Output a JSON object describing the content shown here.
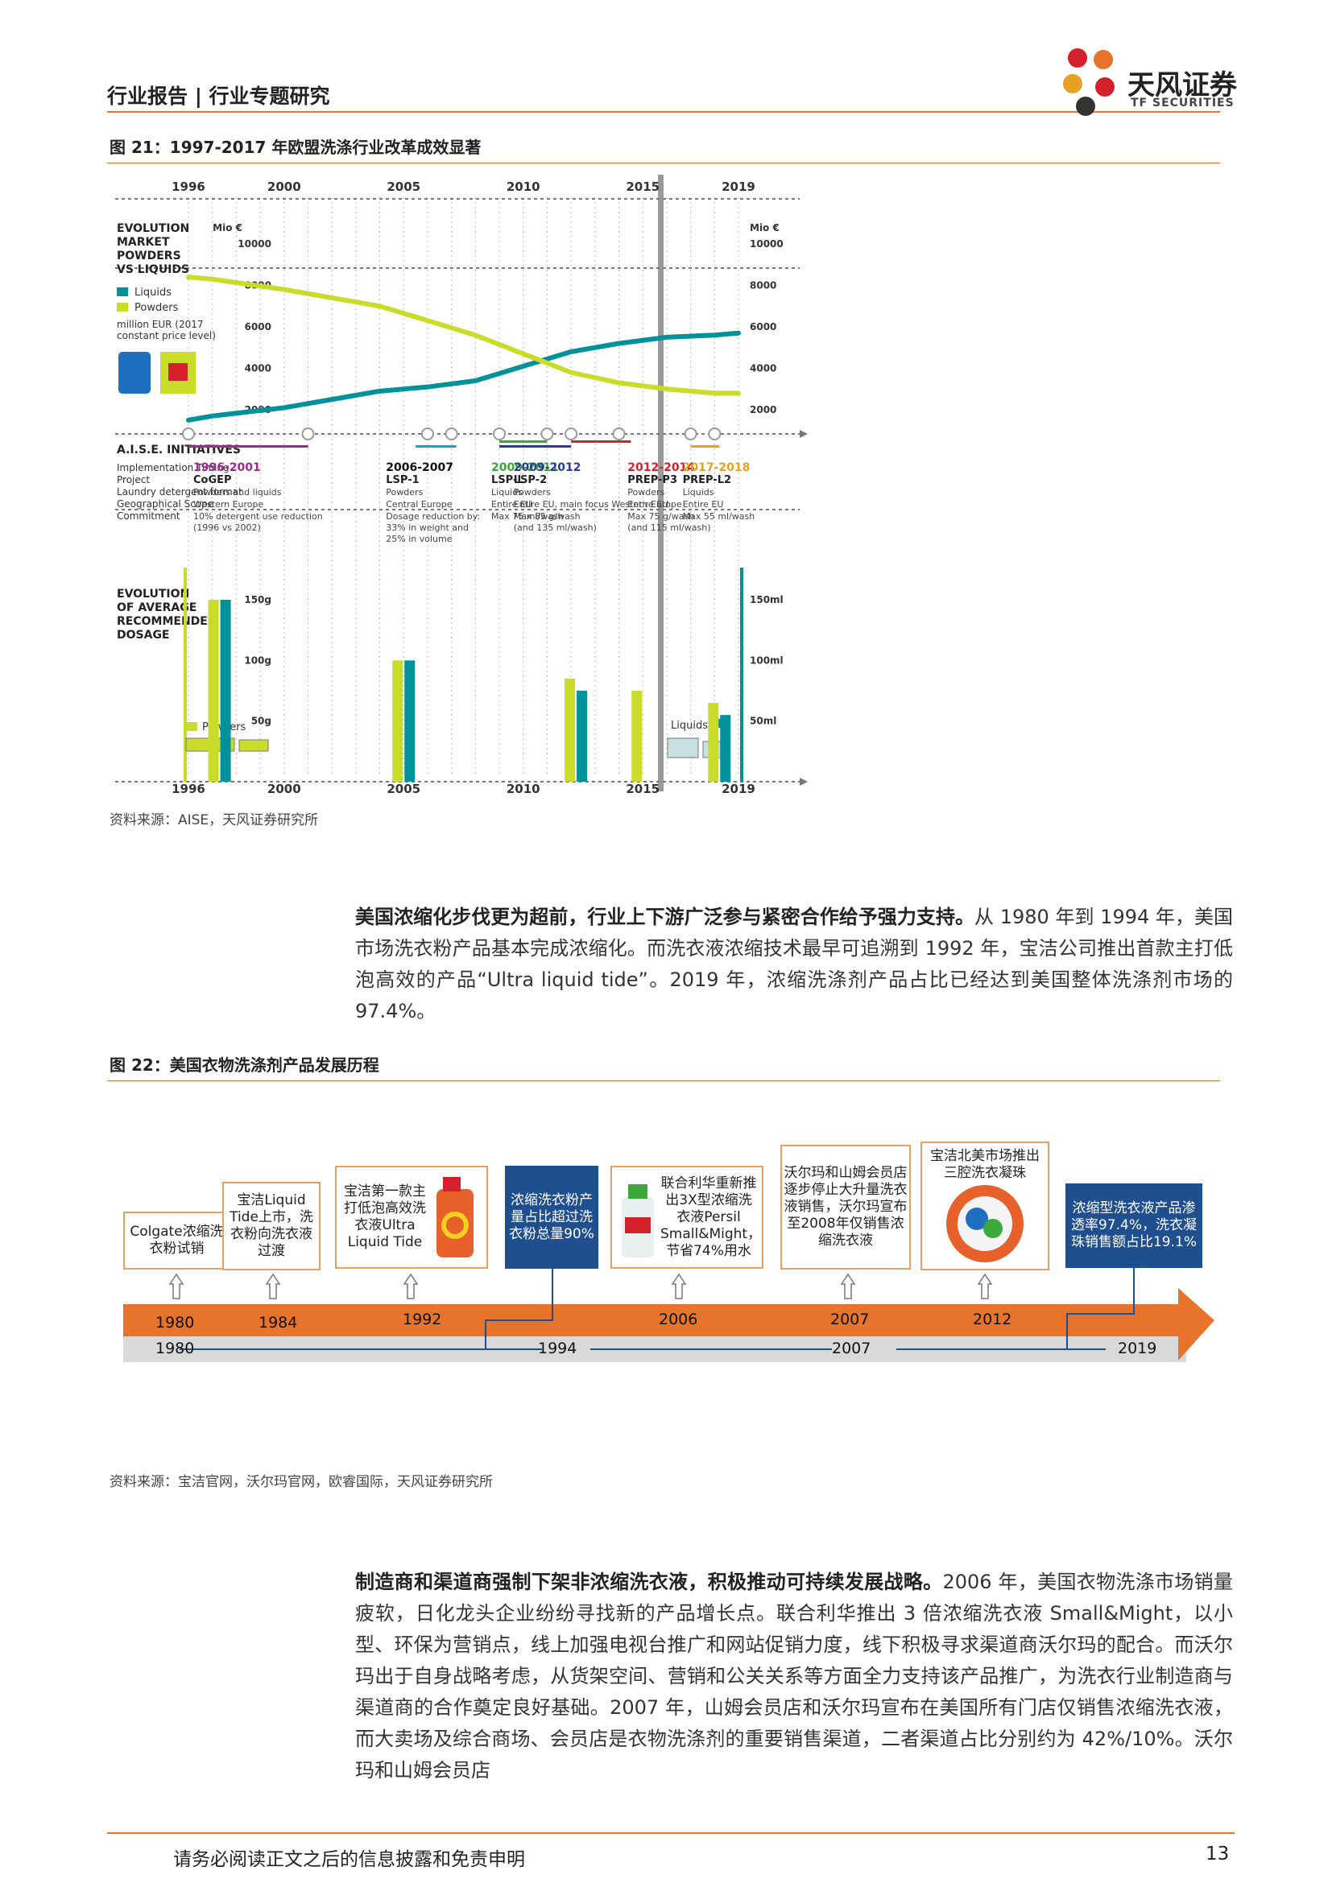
{
  "header": {
    "title": "行业报告 | 行业专题研究",
    "logo_name": "天风证券",
    "logo_sub": "TF SECURITIES"
  },
  "fig21": {
    "title": "图 21：1997-2017 年欧盟洗涤行业改革成效显著",
    "source": "资料来源：AISE，天风证券研究所",
    "top_years": [
      "1996",
      "2000",
      "2005",
      "2010",
      "2015",
      "2019"
    ],
    "bottom_years": [
      "1996",
      "2000",
      "2005",
      "2010",
      "2015",
      "2019"
    ],
    "market_title": [
      "EVOLUTION",
      "MARKET",
      "POWDERS",
      "VS LIQUIDS"
    ],
    "legend_liquids": "Liquids",
    "legend_powders": "Powders",
    "unit_note": [
      "million EUR (2017",
      "constant price level)"
    ],
    "mio": "Mio €",
    "y_ticks": [
      "10000",
      "8000",
      "6000",
      "4000",
      "2000"
    ],
    "initiatives_title": "A.I.S.E. INITIATIVES",
    "row_labels": [
      "Implementation Timing",
      "Project",
      "Laundry detergent format",
      "Geographical Scope",
      "Commitment"
    ],
    "initiatives": [
      {
        "timing": "1996-2001",
        "project": "CoGEP",
        "format": "Powders and liquids",
        "scope": "Western Europe",
        "commit": [
          "10% detergent use reduction",
          "(1996 vs 2002)"
        ],
        "color": "#9b2a8a"
      },
      {
        "timing": "2006-2007",
        "project": "LSP-1",
        "format": "Powders",
        "scope": "Central Europe",
        "commit": [
          "Dosage reduction by:",
          "33% in weight and",
          "25% in volume"
        ],
        "color": "#111111"
      },
      {
        "timing": "2009-2011",
        "project": "LSP-L",
        "format": "Liquids",
        "scope": "Entire EU",
        "commit": [
          "Max 75 ml/wash"
        ],
        "color": "#3aa83a"
      },
      {
        "timing": "2009-2012",
        "project": "LSP-2",
        "format": "Powders",
        "scope": "Entire EU, main focus Western Europe",
        "commit": [
          "Max 85 g/wash",
          "(and 135 ml/wash)"
        ],
        "color": "#2a3a9b"
      },
      {
        "timing": "2012-2014",
        "project": "PREP-P3",
        "format": "Powders",
        "scope": "Entire EU",
        "commit": [
          "Max 75 g/wash",
          "(and 115 ml/wash)"
        ],
        "color": "#d4202a"
      },
      {
        "timing": "2017-2018",
        "project": "PREP-L2",
        "format": "Liquids",
        "scope": "Entire EU",
        "commit": [
          "Max 55 ml/wash"
        ],
        "color": "#e8a020"
      }
    ],
    "dosage_title": [
      "EVOLUTION",
      "OF AVERAGE",
      "RECOMMENDED",
      "DOSAGE"
    ],
    "dosage_left_ticks": [
      "150g",
      "100g",
      "50g"
    ],
    "dosage_right_ticks": [
      "150ml",
      "100ml",
      "50ml"
    ],
    "dosage_legend_powders": "Powders",
    "dosage_legend_liquids": "Liquids"
  },
  "chart_data": [
    {
      "type": "line",
      "title": "",
      "x": [
        1996,
        1997,
        2000,
        2002,
        2004,
        2006,
        2008,
        2010,
        2012,
        2014,
        2016,
        2018,
        2019
      ],
      "series": [
        {
          "name": "Liquids",
          "values": [
            1500,
            1700,
            2100,
            2500,
            2900,
            3100,
            3400,
            4100,
            4800,
            5200,
            5500,
            5600,
            5700
          ]
        },
        {
          "name": "Powders",
          "values": [
            8400,
            8300,
            7800,
            7400,
            7000,
            6300,
            5600,
            4700,
            3800,
            3300,
            3000,
            2800,
            2800
          ]
        }
      ],
      "ylim": [
        0,
        10000
      ],
      "ylabel": "Mio €"
    },
    {
      "type": "bar",
      "title": "",
      "categories": [
        "1996",
        "2006",
        "2012",
        "2015",
        "2019"
      ],
      "series": [
        {
          "name": "Powders",
          "values": [
            150,
            100,
            85,
            75,
            65
          ]
        },
        {
          "name": "Liquids",
          "values": [
            150,
            100,
            75,
            null,
            55
          ]
        }
      ]
    }
  ],
  "para1": {
    "bold": "美国浓缩化步伐更为超前，行业上下游广泛参与紧密合作给予强力支持。",
    "text": "从 1980 年到 1994 年，美国市场洗衣粉产品基本完成浓缩化。而洗衣液浓缩技术最早可追溯到 1992 年，宝洁公司推出首款主打低泡高效的产品“Ultra liquid tide”。2019 年，浓缩洗涤剂产品占比已经达到美国整体洗涤剂市场的 97.4%。"
  },
  "fig22": {
    "title": "图 22：美国衣物洗涤剂产品发展历程",
    "source": "资料来源：宝洁官网，沃尔玛官网，欧睿国际，天风证券研究所",
    "boxes": [
      {
        "text": "Colgate浓缩洗衣粉试销"
      },
      {
        "text": "宝洁Liquid Tide上市，洗衣粉向洗衣液过渡"
      },
      {
        "text": "宝洁第一款主打低泡高效洗衣液Ultra Liquid Tide"
      },
      {
        "text": "浓缩洗衣粉产量占比超过洗衣粉总量90%"
      },
      {
        "text": "联合利华重新推出3X型浓缩洗衣液Persil Small&Might，节省74%用水"
      },
      {
        "text": "沃尔玛和山姆会员店逐步停止大升量洗衣液销售，沃尔玛宣布至2008年仅销售浓缩洗衣液"
      },
      {
        "text": "宝洁北美市场推出三腔洗衣凝珠"
      },
      {
        "text": "浓缩型洗衣液产品渗透率97.4%，洗衣凝珠销售额占比19.1%"
      }
    ],
    "top_years": [
      "1980",
      "1984",
      "1992",
      "2006",
      "2007",
      "2012"
    ],
    "bottom_years": [
      "1980",
      "1994",
      "2007",
      "2019"
    ]
  },
  "para2": {
    "bold": "制造商和渠道商强制下架非浓缩洗衣液，积极推动可持续发展战略。",
    "text": "2006 年，美国衣物洗涤市场销量疲软，日化龙头企业纷纷寻找新的产品增长点。联合利华推出 3 倍浓缩洗衣液 Small&Might，以小型、环保为营销点，线上加强电视台推广和网站促销力度，线下积极寻求渠道商沃尔玛的配合。而沃尔玛出于自身战略考虑，从货架空间、营销和公关关系等方面全力支持该产品推广，为洗衣行业制造商与渠道商的合作奠定良好基础。2007 年，山姆会员店和沃尔玛宣布在美国所有门店仅销售浓缩洗衣液，而大卖场及综合商场、会员店是衣物洗涤剂的重要销售渠道，二者渠道占比分别约为 42%/10%。沃尔玛和山姆会员店"
  },
  "footer": {
    "disclaimer": "请务必阅读正文之后的信息披露和免责申明",
    "page": "13"
  },
  "colors": {
    "accent": "#e8732a",
    "liquids": "#00929a",
    "powders": "#c9dc2a",
    "timeline_blue": "#1f4f8f"
  }
}
